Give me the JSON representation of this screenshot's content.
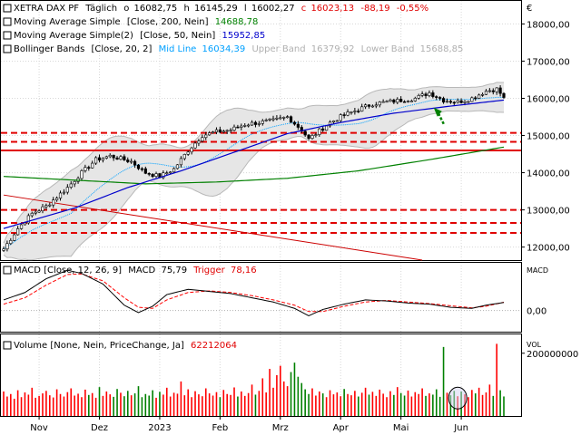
{
  "chart_data": {
    "type": "candlestick",
    "colors": {
      "candle": "#000000",
      "ma200": "#008000",
      "ma50": "#0000cc",
      "bb_mid": "#00a0ff",
      "bb_band": "#b8b8b8",
      "bb_fill": "#e6e6e6",
      "macd": "#000000",
      "trigger": "#ff0000",
      "volume_up": "#ff0000",
      "volume_down": "#008000",
      "support": "#e00000",
      "trendline": "#cc0000",
      "arrow": "#008000"
    },
    "price_panel": {
      "header": {
        "title": "XETRA DAX PF",
        "period": "Täglich",
        "o_label": "o",
        "o": "16082,75",
        "h_label": "h",
        "h": "16145,29",
        "l_label": "l",
        "l": "16002,27",
        "c_label": "c",
        "c": "16023,13",
        "change": "-88,19",
        "change_pct": "-0,55%"
      },
      "legend": [
        {
          "name": "Moving Average Simple",
          "params": "[Close, 200, Nein]",
          "value": "14688,78"
        },
        {
          "name": "Moving Average Simple(2)",
          "params": "[Close, 50, Nein]",
          "value": "15952,85"
        },
        {
          "name": "Bollinger Bands",
          "params": "[Close, 20, 2]",
          "mid_label": "Mid Line",
          "mid": "16034,39",
          "upper_label": "Upper Band",
          "upper": "16379,92",
          "lower_label": "Lower Band",
          "lower": "15688,85"
        }
      ],
      "currency_label": "€",
      "ylim": [
        11650,
        18400
      ],
      "y_ticks": [
        "18000,00",
        "17000,00",
        "16000,00",
        "15000,00",
        "14000,00",
        "13000,00",
        "12000,00"
      ],
      "y_tick_values": [
        18000,
        17000,
        16000,
        15000,
        14000,
        13000,
        12000
      ],
      "support_levels": [
        15070,
        14830,
        13000,
        12650,
        12380
      ],
      "support_level_solid": 14600,
      "close_anchors": [
        [
          0,
          11950
        ],
        [
          4,
          12500
        ],
        [
          8,
          12900
        ],
        [
          12,
          13100
        ],
        [
          18,
          13600
        ],
        [
          22,
          14000
        ],
        [
          26,
          14350
        ],
        [
          30,
          14450
        ],
        [
          36,
          14300
        ],
        [
          40,
          14000
        ],
        [
          44,
          13900
        ],
        [
          48,
          14100
        ],
        [
          52,
          14600
        ],
        [
          56,
          15000
        ],
        [
          60,
          15100
        ],
        [
          64,
          15150
        ],
        [
          68,
          15300
        ],
        [
          72,
          15350
        ],
        [
          76,
          15400
        ],
        [
          80,
          15500
        ],
        [
          84,
          15150
        ],
        [
          86,
          14900
        ],
        [
          88,
          15050
        ],
        [
          92,
          15350
        ],
        [
          96,
          15550
        ],
        [
          100,
          15700
        ],
        [
          104,
          15850
        ],
        [
          108,
          15900
        ],
        [
          112,
          15950
        ],
        [
          116,
          16000
        ],
        [
          120,
          16150
        ],
        [
          124,
          15950
        ],
        [
          128,
          15900
        ],
        [
          132,
          16000
        ],
        [
          136,
          16200
        ],
        [
          139,
          16250
        ],
        [
          141,
          16023
        ]
      ],
      "ma200_anchors": [
        [
          0,
          13900
        ],
        [
          20,
          13800
        ],
        [
          40,
          13700
        ],
        [
          60,
          13750
        ],
        [
          80,
          13850
        ],
        [
          100,
          14050
        ],
        [
          120,
          14350
        ],
        [
          141,
          14689
        ]
      ],
      "ma50_anchors": [
        [
          0,
          12500
        ],
        [
          20,
          13050
        ],
        [
          35,
          13600
        ],
        [
          50,
          14050
        ],
        [
          65,
          14550
        ],
        [
          80,
          15050
        ],
        [
          95,
          15350
        ],
        [
          110,
          15600
        ],
        [
          125,
          15780
        ],
        [
          141,
          15953
        ]
      ],
      "trendline": [
        [
          0,
          13400
        ],
        [
          118,
          11650
        ]
      ],
      "circle_index": 128
    },
    "macd_panel": {
      "label": "MACD [Close, 12, 26, 9]",
      "macd_label": "MACD",
      "macd": "75,79",
      "trigger_label": "Trigger",
      "trigger": "78,16",
      "axis_label": "MACD",
      "y_tick": "0,00",
      "ylim": [
        -200,
        450
      ],
      "macd_anchors": [
        [
          0,
          100
        ],
        [
          6,
          170
        ],
        [
          12,
          300
        ],
        [
          18,
          380
        ],
        [
          22,
          350
        ],
        [
          28,
          250
        ],
        [
          34,
          50
        ],
        [
          38,
          -20
        ],
        [
          42,
          40
        ],
        [
          46,
          150
        ],
        [
          52,
          200
        ],
        [
          58,
          180
        ],
        [
          64,
          160
        ],
        [
          70,
          120
        ],
        [
          76,
          80
        ],
        [
          82,
          20
        ],
        [
          86,
          -50
        ],
        [
          90,
          10
        ],
        [
          96,
          60
        ],
        [
          102,
          100
        ],
        [
          108,
          90
        ],
        [
          114,
          70
        ],
        [
          120,
          60
        ],
        [
          126,
          30
        ],
        [
          132,
          20
        ],
        [
          136,
          50
        ],
        [
          141,
          76
        ]
      ],
      "trigger_anchors": [
        [
          0,
          60
        ],
        [
          6,
          120
        ],
        [
          12,
          240
        ],
        [
          18,
          340
        ],
        [
          22,
          345
        ],
        [
          28,
          280
        ],
        [
          34,
          120
        ],
        [
          38,
          30
        ],
        [
          42,
          20
        ],
        [
          46,
          100
        ],
        [
          52,
          170
        ],
        [
          58,
          185
        ],
        [
          64,
          170
        ],
        [
          70,
          140
        ],
        [
          76,
          100
        ],
        [
          82,
          50
        ],
        [
          86,
          -10
        ],
        [
          90,
          -10
        ],
        [
          96,
          40
        ],
        [
          102,
          80
        ],
        [
          108,
          95
        ],
        [
          114,
          80
        ],
        [
          120,
          65
        ],
        [
          126,
          45
        ],
        [
          132,
          25
        ],
        [
          136,
          40
        ],
        [
          141,
          78
        ]
      ]
    },
    "volume_panel": {
      "label": "Volume [None, Nein, PriceChange, Ja]",
      "value": "62212064",
      "axis_label": "VOL",
      "y_tick": "200000000",
      "ylim": [
        0,
        260000000
      ],
      "values": [
        78000000,
        62000000,
        70000000,
        55000000,
        82000000,
        60000000,
        75000000,
        68000000,
        90000000,
        58000000,
        64000000,
        72000000,
        80000000,
        66000000,
        59000000,
        85000000,
        70000000,
        62000000,
        76000000,
        88000000,
        65000000,
        71000000,
        60000000,
        84000000,
        67000000,
        73000000,
        58000000,
        92000000,
        64000000,
        78000000,
        69000000,
        61000000,
        86000000,
        74000000,
        63000000,
        80000000,
        66000000,
        72000000,
        95000000,
        60000000,
        70000000,
        65000000,
        82000000,
        58000000,
        77000000,
        68000000,
        90000000,
        62000000,
        74000000,
        71000000,
        110000000,
        66000000,
        85000000,
        60000000,
        79000000,
        69000000,
        63000000,
        88000000,
        72000000,
        65000000,
        76000000,
        60000000,
        83000000,
        70000000,
        67000000,
        91000000,
        62000000,
        78000000,
        64000000,
        73000000,
        100000000,
        68000000,
        80000000,
        120000000,
        75000000,
        150000000,
        90000000,
        130000000,
        160000000,
        110000000,
        95000000,
        140000000,
        170000000,
        125000000,
        105000000,
        85000000,
        70000000,
        88000000,
        65000000,
        78000000,
        72000000,
        60000000,
        82000000,
        69000000,
        75000000,
        63000000,
        86000000,
        70000000,
        66000000,
        80000000,
        62000000,
        74000000,
        90000000,
        68000000,
        77000000,
        64000000,
        84000000,
        71000000,
        60000000,
        79000000,
        67000000,
        92000000,
        73000000,
        65000000,
        81000000,
        62000000,
        76000000,
        70000000,
        88000000,
        64000000,
        72000000,
        68000000,
        85000000,
        61000000,
        220000000,
        74000000,
        66000000,
        80000000,
        63000000,
        78000000,
        69000000,
        60000000,
        83000000,
        72000000,
        90000000,
        67000000,
        75000000,
        100000000,
        64000000,
        230000000,
        82000000,
        62212064
      ]
    },
    "x_labels": [
      {
        "label": "Nov",
        "index": 10
      },
      {
        "label": "Dez",
        "index": 27
      },
      {
        "label": "2023",
        "index": 44
      },
      {
        "label": "Feb",
        "index": 61
      },
      {
        "label": "Mrz",
        "index": 78
      },
      {
        "label": "Apr",
        "index": 95
      },
      {
        "label": "Mai",
        "index": 112
      },
      {
        "label": "Jun",
        "index": 129
      }
    ],
    "n_bars": 142
  }
}
